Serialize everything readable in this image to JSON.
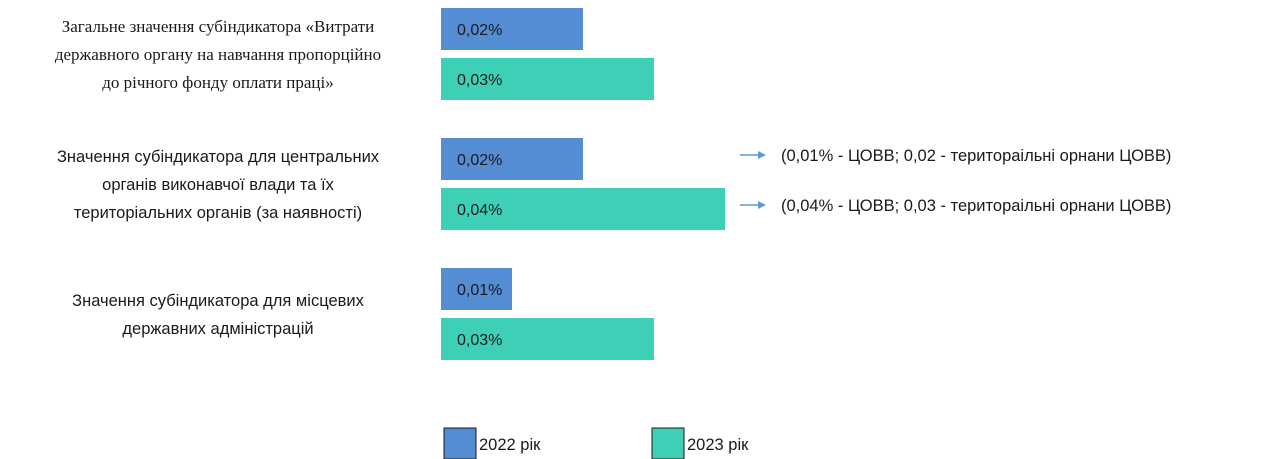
{
  "chart_data": {
    "type": "bar",
    "orientation": "horizontal",
    "categories": [
      "Загальне значення субіндикатора «Витрати державного органу на навчання пропорційно до річного фонду оплати праці»",
      "Значення субіндикатора для центральних органів виконавчої влади та їх територіальних органів (за наявності)",
      "Значення субіндикатора для місцевих державних адміністрацій"
    ],
    "category_label_lines": [
      [
        "Загальне значення субіндикатора «Витрати",
        "державного органу на навчання пропорційно",
        "до річного фонду оплати праці»"
      ],
      [
        "Значення субіндикатора для центральних",
        "органів виконавчої влади та їх",
        "територіальних органів (за наявності)"
      ],
      [
        "Значення субіндикатора для місцевих",
        "державних адміністрацій"
      ]
    ],
    "series": [
      {
        "name": "2022 рік",
        "color": "#548DD4",
        "values": [
          0.02,
          0.02,
          0.01
        ],
        "labels": [
          "0,02%",
          "0,02%",
          "0,01%"
        ]
      },
      {
        "name": "2023 рік",
        "color": "#3DD0B7",
        "values": [
          0.03,
          0.04,
          0.03
        ],
        "labels": [
          "0,03%",
          "0,04%",
          "0,03%"
        ]
      }
    ],
    "annotations": [
      {
        "category_index": 1,
        "series_index": 0,
        "text": "(0,01% - ЦОВВ; 0,02 - територаільні орнани ЦОВВ)"
      },
      {
        "category_index": 1,
        "series_index": 1,
        "text": "(0,04% - ЦОВВ; 0,03 - територаільні орнани ЦОВВ)"
      }
    ],
    "arrow_color": "#5B9BD5",
    "legend_position": "bottom",
    "grid": false
  }
}
